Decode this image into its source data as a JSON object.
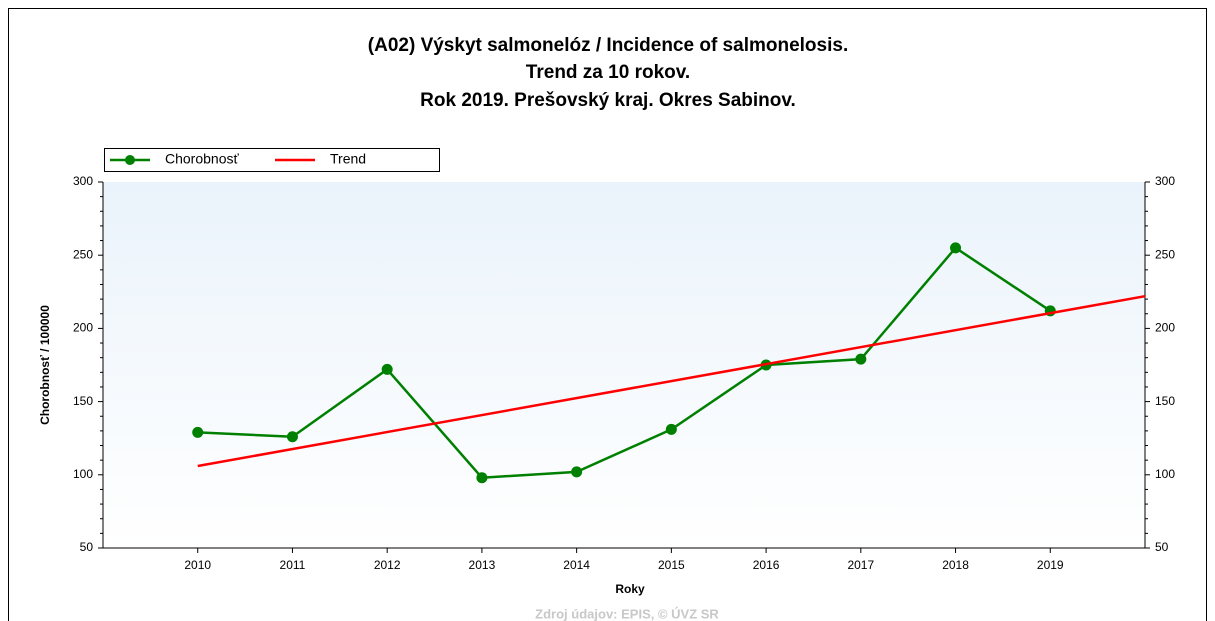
{
  "chart_data": {
    "type": "line",
    "title": [
      "(A02) Výskyt salmonelóz / Incidence of salmonelosis.",
      "Trend za 10 rokov.",
      "Rok 2019. Prešovský kraj. Okres Sabinov."
    ],
    "x_label": "Roky",
    "y_label": "Chorobnosť / 100000",
    "source": "Zdroj údajov: EPIS, © ÚVZ SR",
    "x": [
      2010,
      2011,
      2012,
      2013,
      2014,
      2015,
      2016,
      2017,
      2018,
      2019
    ],
    "series": [
      {
        "name": "Chorobnosť",
        "color": "#008000",
        "values": [
          129,
          126,
          172,
          98,
          102,
          131,
          175,
          179,
          255,
          212
        ]
      },
      {
        "name": "Trend",
        "color": "#ff0000",
        "x": [
          2010,
          2020
        ],
        "values": [
          106,
          222
        ]
      }
    ],
    "xlim": [
      2009,
      2020
    ],
    "xticks": [
      2010,
      2011,
      2012,
      2013,
      2014,
      2015,
      2016,
      2017,
      2018,
      2019
    ],
    "ylim": [
      50,
      300
    ],
    "yticks": [
      50,
      100,
      150,
      200,
      250,
      300
    ],
    "legend": "top-left"
  }
}
